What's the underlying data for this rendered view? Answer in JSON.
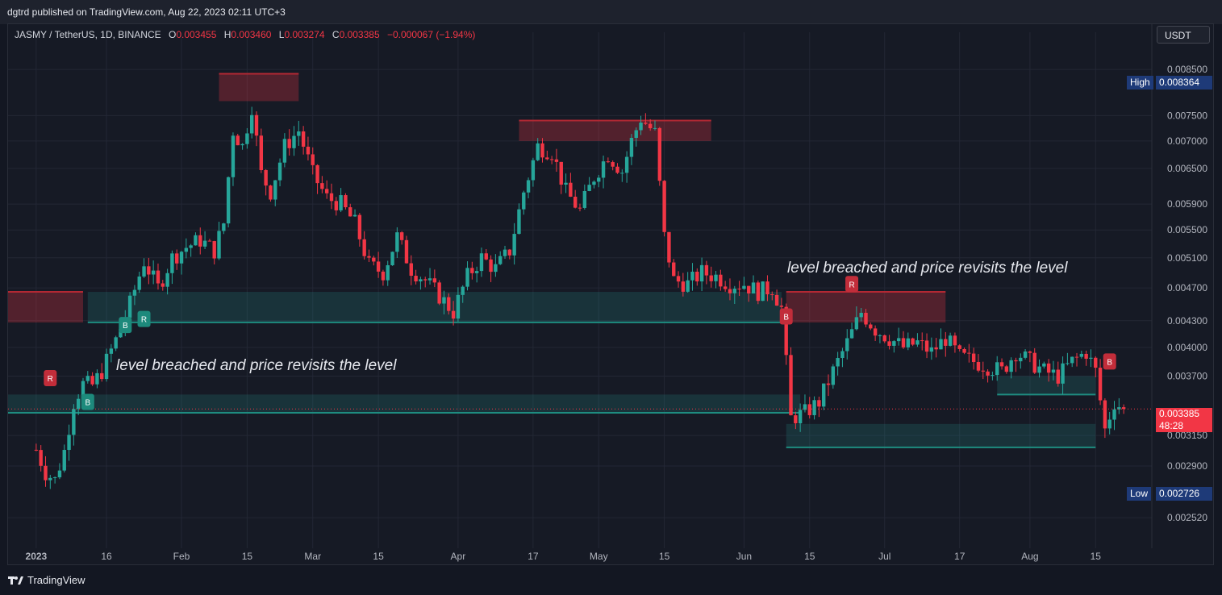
{
  "header": {
    "publisher": "dgtrd published on TradingView.com, Aug 22, 2023 02:11 UTC+3"
  },
  "legend": {
    "symbol": "JASMY / TetherUS, 1D, BINANCE",
    "o_label": "O",
    "o": "0.003455",
    "h_label": "H",
    "h": "0.003460",
    "l_label": "L",
    "l": "0.003274",
    "c_label": "C",
    "c": "0.003385",
    "change": "−0.000067 (−1.94%)"
  },
  "currency": "USDT",
  "annotations": [
    "level breached and price revisits the level",
    "level breached and price revisits the level"
  ],
  "markers": {
    "high_label": "High",
    "high_value": "0.008364",
    "low_label": "Low",
    "low_value": "0.002726",
    "last_price": "0.003385",
    "countdown": "48:28"
  },
  "footer": {
    "brand": "TradingView"
  },
  "chart_data": {
    "type": "candlestick",
    "scale": "log",
    "y_ticks": [
      "0.008500",
      "0.007500",
      "0.007000",
      "0.006500",
      "0.005900",
      "0.005500",
      "0.005100",
      "0.004700",
      "0.004300",
      "0.004000",
      "0.003700",
      "0.003150",
      "0.002900",
      "0.002520"
    ],
    "x_ticks": [
      "2023",
      "16",
      "Feb",
      "15",
      "Mar",
      "15",
      "Apr",
      "17",
      "May",
      "15",
      "Jun",
      "15",
      "Jul",
      "17",
      "Aug",
      "15"
    ],
    "close_path": [
      [
        "2023-01-01",
        0.00303
      ],
      [
        "2023-01-03",
        0.00285
      ],
      [
        "2023-01-05",
        0.00279
      ],
      [
        "2023-01-07",
        0.00302
      ],
      [
        "2023-01-09",
        0.00345
      ],
      [
        "2023-01-11",
        0.00362
      ],
      [
        "2023-01-13",
        0.00361
      ],
      [
        "2023-01-15",
        0.00375
      ],
      [
        "2023-01-18",
        0.00408
      ],
      [
        "2023-01-21",
        0.0045
      ],
      [
        "2023-01-24",
        0.00505
      ],
      [
        "2023-01-27",
        0.0047
      ],
      [
        "2023-01-30",
        0.0051
      ],
      [
        "2023-02-02",
        0.00525
      ],
      [
        "2023-02-05",
        0.00535
      ],
      [
        "2023-02-08",
        0.0052
      ],
      [
        "2023-02-10",
        0.0056
      ],
      [
        "2023-02-12",
        0.0072
      ],
      [
        "2023-02-14",
        0.0069
      ],
      [
        "2023-02-16",
        0.0077
      ],
      [
        "2023-02-18",
        0.0064
      ],
      [
        "2023-02-20",
        0.0061
      ],
      [
        "2023-02-23",
        0.0069
      ],
      [
        "2023-02-26",
        0.0072
      ],
      [
        "2023-03-01",
        0.0064
      ],
      [
        "2023-03-04",
        0.006
      ],
      [
        "2023-03-07",
        0.0059
      ],
      [
        "2023-03-10",
        0.0056
      ],
      [
        "2023-03-13",
        0.005
      ],
      [
        "2023-03-16",
        0.0049
      ],
      [
        "2023-03-19",
        0.0054
      ],
      [
        "2023-03-22",
        0.00495
      ],
      [
        "2023-03-25",
        0.0048
      ],
      [
        "2023-03-28",
        0.0046
      ],
      [
        "2023-03-31",
        0.0044
      ],
      [
        "2023-04-03",
        0.00485
      ],
      [
        "2023-04-06",
        0.0051
      ],
      [
        "2023-04-09",
        0.00495
      ],
      [
        "2023-04-12",
        0.0052
      ],
      [
        "2023-04-15",
        0.0061
      ],
      [
        "2023-04-18",
        0.0069
      ],
      [
        "2023-04-21",
        0.0068
      ],
      [
        "2023-04-24",
        0.0061
      ],
      [
        "2023-04-27",
        0.0058
      ],
      [
        "2023-04-30",
        0.00635
      ],
      [
        "2023-05-03",
        0.00675
      ],
      [
        "2023-05-06",
        0.00645
      ],
      [
        "2023-05-08",
        0.007
      ],
      [
        "2023-05-10",
        0.00745
      ],
      [
        "2023-05-13",
        0.00715
      ],
      [
        "2023-05-15",
        0.0054
      ],
      [
        "2023-05-17",
        0.0048
      ],
      [
        "2023-05-20",
        0.00475
      ],
      [
        "2023-05-23",
        0.0049
      ],
      [
        "2023-05-26",
        0.00485
      ],
      [
        "2023-05-29",
        0.00475
      ],
      [
        "2023-06-01",
        0.00475
      ],
      [
        "2023-06-04",
        0.00465
      ],
      [
        "2023-06-07",
        0.0047
      ],
      [
        "2023-06-09",
        0.00445
      ],
      [
        "2023-06-11",
        0.0033
      ],
      [
        "2023-06-14",
        0.00335
      ],
      [
        "2023-06-17",
        0.00345
      ],
      [
        "2023-06-20",
        0.00375
      ],
      [
        "2023-06-23",
        0.00405
      ],
      [
        "2023-06-26",
        0.0044
      ],
      [
        "2023-06-29",
        0.0042
      ],
      [
        "2023-07-02",
        0.0041
      ],
      [
        "2023-07-05",
        0.004
      ],
      [
        "2023-07-08",
        0.00405
      ],
      [
        "2023-07-11",
        0.00395
      ],
      [
        "2023-07-14",
        0.0041
      ],
      [
        "2023-07-17",
        0.0039
      ],
      [
        "2023-07-20",
        0.00385
      ],
      [
        "2023-07-23",
        0.0038
      ],
      [
        "2023-07-26",
        0.00375
      ],
      [
        "2023-07-29",
        0.00395
      ],
      [
        "2023-08-01",
        0.00385
      ],
      [
        "2023-08-04",
        0.00375
      ],
      [
        "2023-08-07",
        0.0037
      ],
      [
        "2023-08-10",
        0.00385
      ],
      [
        "2023-08-13",
        0.00395
      ],
      [
        "2023-08-15",
        0.00375
      ],
      [
        "2023-08-17",
        0.0032
      ],
      [
        "2023-08-19",
        0.00345
      ],
      [
        "2023-08-21",
        0.003385
      ]
    ],
    "zones": [
      {
        "kind": "resistance",
        "from": "2023-02-09",
        "to": "2023-02-26",
        "low": 0.0078,
        "high": 0.0084
      },
      {
        "kind": "resistance",
        "from": "2023-04-14",
        "to": "2023-05-25",
        "low": 0.007,
        "high": 0.0074
      },
      {
        "kind": "resistance",
        "from": "2022-12-26",
        "to": "2023-01-11",
        "low": 0.00428,
        "high": 0.00465
      },
      {
        "kind": "support",
        "from": "2023-01-12",
        "to": "2023-06-09",
        "low": 0.00428,
        "high": 0.00465
      },
      {
        "kind": "resistance",
        "from": "2023-06-10",
        "to": "2023-07-14",
        "low": 0.00428,
        "high": 0.00465
      },
      {
        "kind": "support",
        "from": "2022-12-26",
        "to": "2023-06-13",
        "low": 0.00335,
        "high": 0.00352
      },
      {
        "kind": "support",
        "from": "2023-06-10",
        "to": "2023-08-15",
        "low": 0.00305,
        "high": 0.00325
      },
      {
        "kind": "support",
        "from": "2023-07-25",
        "to": "2023-08-15",
        "low": 0.00352,
        "high": 0.0037
      }
    ],
    "signals": [
      {
        "date": "2023-01-04",
        "price": 0.00368,
        "label": "R",
        "kind": "sell"
      },
      {
        "date": "2023-01-12",
        "price": 0.00345,
        "label": "B",
        "kind": "buy"
      },
      {
        "date": "2023-01-20",
        "price": 0.00425,
        "label": "B",
        "kind": "buy"
      },
      {
        "date": "2023-01-24",
        "price": 0.00432,
        "label": "R",
        "kind": "buy"
      },
      {
        "date": "2023-06-10",
        "price": 0.00435,
        "label": "B",
        "kind": "sell"
      },
      {
        "date": "2023-06-24",
        "price": 0.00475,
        "label": "R",
        "kind": "sell"
      },
      {
        "date": "2023-08-18",
        "price": 0.00385,
        "label": "B",
        "kind": "sell"
      }
    ]
  }
}
